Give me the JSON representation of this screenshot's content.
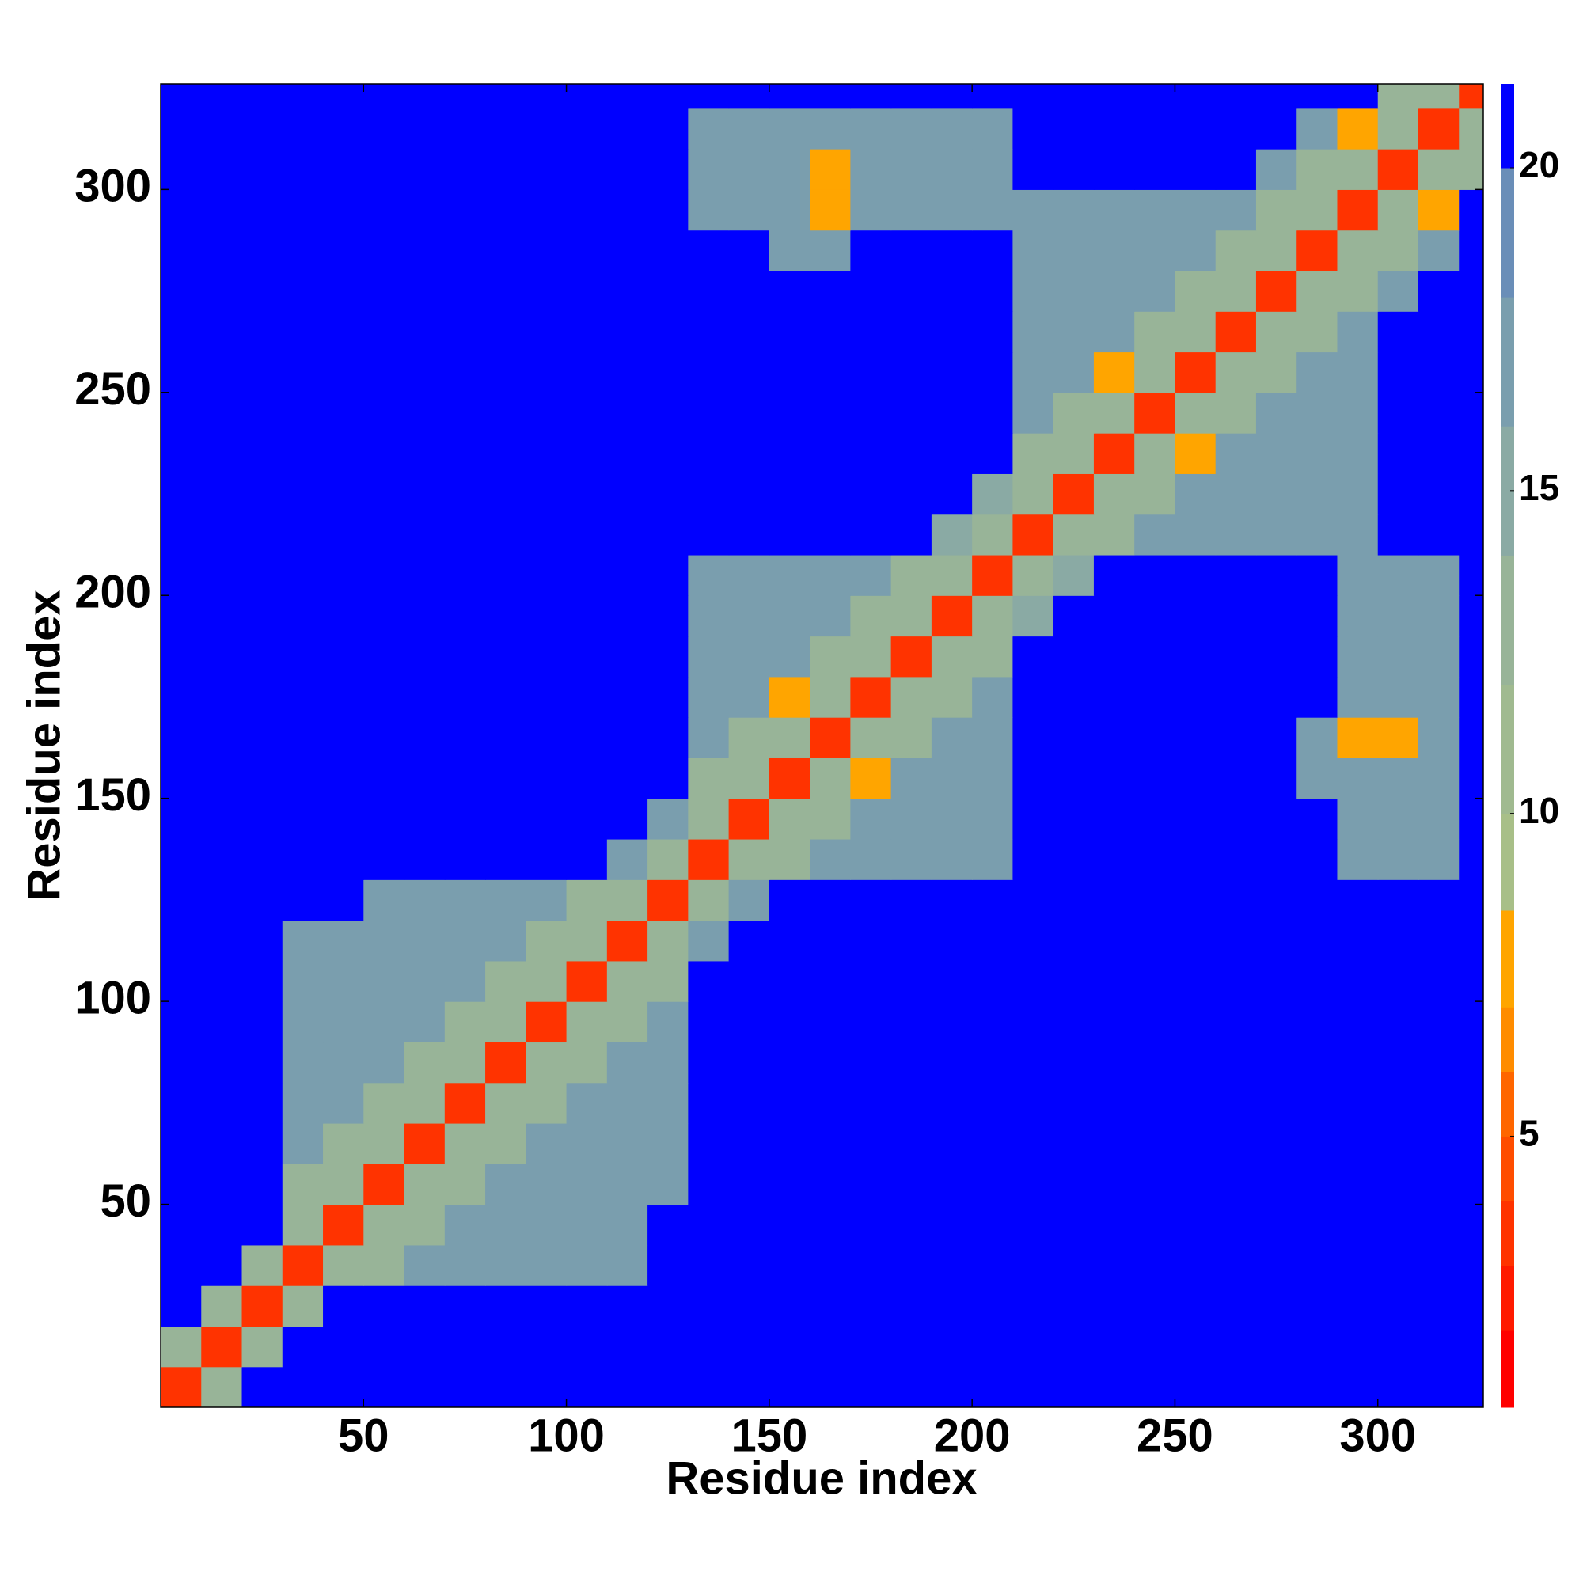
{
  "chart_data": {
    "type": "heatmap",
    "x_label": "Residue index",
    "y_label": "Residue index",
    "xlim": [
      0,
      326
    ],
    "ylim": [
      0,
      326
    ],
    "xticks": [
      50,
      100,
      150,
      200,
      250,
      300
    ],
    "yticks": [
      50,
      100,
      150,
      200,
      250,
      300
    ],
    "bins": [
      0,
      10,
      20,
      30,
      40,
      50,
      60,
      70,
      80,
      90,
      100,
      110,
      120,
      130,
      140,
      150,
      160,
      170,
      180,
      190,
      200,
      210,
      220,
      230,
      240,
      250,
      260,
      270,
      280,
      290,
      300,
      310,
      320,
      326
    ],
    "z": [
      [
        3,
        12,
        25,
        25,
        25,
        25,
        25,
        25,
        25,
        25,
        25,
        25,
        25,
        25,
        25,
        25,
        25,
        25,
        25,
        25,
        25,
        25,
        25,
        25,
        25,
        25,
        25,
        25,
        25,
        25,
        25,
        25,
        25
      ],
      [
        12,
        3,
        12,
        25,
        25,
        25,
        25,
        25,
        25,
        25,
        25,
        25,
        25,
        25,
        25,
        25,
        25,
        25,
        25,
        25,
        25,
        25,
        25,
        25,
        25,
        25,
        25,
        25,
        25,
        25,
        25,
        25,
        25
      ],
      [
        25,
        12,
        3,
        12,
        25,
        25,
        25,
        25,
        25,
        25,
        25,
        25,
        25,
        25,
        25,
        25,
        25,
        25,
        25,
        25,
        25,
        25,
        25,
        25,
        25,
        25,
        25,
        25,
        25,
        25,
        25,
        25,
        25
      ],
      [
        25,
        25,
        12,
        3,
        12,
        13,
        17,
        17,
        17,
        17,
        17,
        17,
        25,
        25,
        25,
        25,
        25,
        25,
        25,
        25,
        25,
        25,
        25,
        25,
        25,
        25,
        25,
        25,
        25,
        25,
        25,
        25,
        25
      ],
      [
        25,
        25,
        25,
        12,
        3,
        12,
        13,
        17,
        17,
        17,
        17,
        17,
        25,
        25,
        25,
        25,
        25,
        25,
        25,
        25,
        25,
        25,
        25,
        25,
        25,
        25,
        25,
        25,
        25,
        25,
        25,
        25,
        25
      ],
      [
        25,
        25,
        25,
        13,
        12,
        3,
        12,
        13,
        17,
        17,
        17,
        17,
        17,
        25,
        25,
        25,
        25,
        25,
        25,
        25,
        25,
        25,
        25,
        25,
        25,
        25,
        25,
        25,
        25,
        25,
        25,
        25,
        25
      ],
      [
        25,
        25,
        25,
        17,
        13,
        12,
        3,
        12,
        13,
        17,
        17,
        17,
        17,
        25,
        25,
        25,
        25,
        25,
        25,
        25,
        25,
        25,
        25,
        25,
        25,
        25,
        25,
        25,
        25,
        25,
        25,
        25,
        25
      ],
      [
        25,
        25,
        25,
        17,
        17,
        13,
        12,
        3,
        12,
        13,
        17,
        17,
        17,
        25,
        25,
        25,
        25,
        25,
        25,
        25,
        25,
        25,
        25,
        25,
        25,
        25,
        25,
        25,
        25,
        25,
        25,
        25,
        25
      ],
      [
        25,
        25,
        25,
        17,
        17,
        17,
        13,
        12,
        3,
        12,
        13,
        17,
        17,
        25,
        25,
        25,
        25,
        25,
        25,
        25,
        25,
        25,
        25,
        25,
        25,
        25,
        25,
        25,
        25,
        25,
        25,
        25,
        25
      ],
      [
        25,
        25,
        25,
        17,
        17,
        17,
        17,
        13,
        12,
        3,
        12,
        13,
        17,
        25,
        25,
        25,
        25,
        25,
        25,
        25,
        25,
        25,
        25,
        25,
        25,
        25,
        25,
        25,
        25,
        25,
        25,
        25,
        25
      ],
      [
        25,
        25,
        25,
        17,
        17,
        17,
        17,
        17,
        13,
        12,
        3,
        12,
        13,
        25,
        25,
        25,
        25,
        25,
        25,
        25,
        25,
        25,
        25,
        25,
        25,
        25,
        25,
        25,
        25,
        25,
        25,
        25,
        25
      ],
      [
        25,
        25,
        25,
        17,
        17,
        17,
        17,
        17,
        17,
        13,
        12,
        3,
        12,
        16,
        25,
        25,
        25,
        25,
        25,
        25,
        25,
        25,
        25,
        25,
        25,
        25,
        25,
        25,
        25,
        25,
        25,
        25,
        25
      ],
      [
        25,
        25,
        25,
        25,
        25,
        17,
        17,
        17,
        17,
        17,
        13,
        12,
        3,
        12,
        16,
        25,
        25,
        25,
        25,
        25,
        25,
        25,
        25,
        25,
        25,
        25,
        25,
        25,
        25,
        25,
        25,
        25,
        25
      ],
      [
        25,
        25,
        25,
        25,
        25,
        25,
        25,
        25,
        25,
        25,
        25,
        16,
        12,
        3,
        12,
        13,
        16,
        16,
        16,
        16,
        16,
        25,
        25,
        25,
        25,
        25,
        25,
        25,
        25,
        17,
        17,
        17,
        25
      ],
      [
        25,
        25,
        25,
        25,
        25,
        25,
        25,
        25,
        25,
        25,
        25,
        25,
        16,
        12,
        3,
        12,
        13,
        16,
        16,
        16,
        16,
        25,
        25,
        25,
        25,
        25,
        25,
        25,
        25,
        17,
        17,
        17,
        25
      ],
      [
        25,
        25,
        25,
        25,
        25,
        25,
        25,
        25,
        25,
        25,
        25,
        25,
        25,
        13,
        12,
        3,
        12,
        8,
        16,
        16,
        16,
        25,
        25,
        25,
        25,
        25,
        25,
        25,
        17,
        17,
        17,
        17,
        25
      ],
      [
        25,
        25,
        25,
        25,
        25,
        25,
        25,
        25,
        25,
        25,
        25,
        25,
        25,
        16,
        13,
        12,
        3,
        12,
        13,
        16,
        16,
        25,
        25,
        25,
        25,
        25,
        25,
        25,
        17,
        8,
        8,
        17,
        25
      ],
      [
        25,
        25,
        25,
        25,
        25,
        25,
        25,
        25,
        25,
        25,
        25,
        25,
        25,
        16,
        16,
        8,
        12,
        3,
        12,
        13,
        16,
        25,
        25,
        25,
        25,
        25,
        25,
        25,
        25,
        17,
        17,
        17,
        25
      ],
      [
        25,
        25,
        25,
        25,
        25,
        25,
        25,
        25,
        25,
        25,
        25,
        25,
        25,
        16,
        16,
        16,
        13,
        12,
        3,
        12,
        13,
        25,
        25,
        25,
        25,
        25,
        25,
        25,
        25,
        17,
        17,
        17,
        25
      ],
      [
        25,
        25,
        25,
        25,
        25,
        25,
        25,
        25,
        25,
        25,
        25,
        25,
        25,
        16,
        16,
        16,
        16,
        13,
        12,
        3,
        12,
        14,
        25,
        25,
        25,
        25,
        25,
        25,
        25,
        17,
        17,
        17,
        25
      ],
      [
        25,
        25,
        25,
        25,
        25,
        25,
        25,
        25,
        25,
        25,
        25,
        25,
        25,
        16,
        16,
        16,
        16,
        16,
        13,
        12,
        3,
        12,
        14,
        25,
        25,
        25,
        25,
        25,
        25,
        17,
        17,
        17,
        25
      ],
      [
        25,
        25,
        25,
        25,
        25,
        25,
        25,
        25,
        25,
        25,
        25,
        25,
        25,
        25,
        25,
        25,
        25,
        25,
        25,
        14,
        12,
        3,
        12,
        13,
        16,
        16,
        16,
        16,
        16,
        16,
        25,
        25,
        25
      ],
      [
        25,
        25,
        25,
        25,
        25,
        25,
        25,
        25,
        25,
        25,
        25,
        25,
        25,
        25,
        25,
        25,
        25,
        25,
        25,
        25,
        14,
        12,
        3,
        12,
        13,
        16,
        16,
        16,
        16,
        16,
        25,
        25,
        25
      ],
      [
        25,
        25,
        25,
        25,
        25,
        25,
        25,
        25,
        25,
        25,
        25,
        25,
        25,
        25,
        25,
        25,
        25,
        25,
        25,
        25,
        25,
        13,
        12,
        3,
        12,
        8,
        16,
        16,
        16,
        16,
        25,
        25,
        25
      ],
      [
        25,
        25,
        25,
        25,
        25,
        25,
        25,
        25,
        25,
        25,
        25,
        25,
        25,
        25,
        25,
        25,
        25,
        25,
        25,
        25,
        25,
        16,
        13,
        12,
        3,
        12,
        13,
        16,
        16,
        16,
        25,
        25,
        25
      ],
      [
        25,
        25,
        25,
        25,
        25,
        25,
        25,
        25,
        25,
        25,
        25,
        25,
        25,
        25,
        25,
        25,
        25,
        25,
        25,
        25,
        25,
        16,
        16,
        8,
        12,
        3,
        12,
        13,
        16,
        16,
        25,
        25,
        25
      ],
      [
        25,
        25,
        25,
        25,
        25,
        25,
        25,
        25,
        25,
        25,
        25,
        25,
        25,
        25,
        25,
        25,
        25,
        25,
        25,
        25,
        25,
        16,
        16,
        16,
        13,
        12,
        3,
        12,
        13,
        16,
        25,
        25,
        25
      ],
      [
        25,
        25,
        25,
        25,
        25,
        25,
        25,
        25,
        25,
        25,
        25,
        25,
        25,
        25,
        25,
        25,
        25,
        25,
        25,
        25,
        25,
        16,
        16,
        16,
        16,
        13,
        12,
        3,
        12,
        13,
        16,
        25,
        25
      ],
      [
        25,
        25,
        25,
        25,
        25,
        25,
        25,
        25,
        25,
        25,
        25,
        25,
        25,
        25,
        25,
        17,
        17,
        25,
        25,
        25,
        25,
        16,
        16,
        16,
        16,
        16,
        13,
        12,
        3,
        12,
        13,
        16,
        25
      ],
      [
        25,
        25,
        25,
        25,
        25,
        25,
        25,
        25,
        25,
        25,
        25,
        25,
        25,
        17,
        17,
        17,
        8,
        17,
        17,
        17,
        17,
        16,
        16,
        16,
        16,
        16,
        16,
        13,
        12,
        3,
        12,
        8,
        25
      ],
      [
        25,
        25,
        25,
        25,
        25,
        25,
        25,
        25,
        25,
        25,
        25,
        25,
        25,
        17,
        17,
        17,
        8,
        17,
        17,
        17,
        17,
        25,
        25,
        25,
        25,
        25,
        25,
        16,
        13,
        12,
        3,
        12,
        13
      ],
      [
        25,
        25,
        25,
        25,
        25,
        25,
        25,
        25,
        25,
        25,
        25,
        25,
        25,
        17,
        17,
        17,
        17,
        17,
        17,
        17,
        17,
        25,
        25,
        25,
        25,
        25,
        25,
        25,
        16,
        8,
        12,
        3,
        12
      ],
      [
        25,
        25,
        25,
        25,
        25,
        25,
        25,
        25,
        25,
        25,
        25,
        25,
        25,
        25,
        25,
        25,
        25,
        25,
        25,
        25,
        25,
        25,
        25,
        25,
        25,
        25,
        25,
        25,
        25,
        25,
        13,
        12,
        3
      ]
    ],
    "levels": [
      2,
      3,
      4,
      5,
      6,
      7,
      8.5,
      10,
      12,
      14,
      16,
      18,
      20
    ],
    "colors": [
      "#ff0000",
      "#ff1a00",
      "#ff3300",
      "#ff4d00",
      "#ff6600",
      "#ff8c00",
      "#ffa500",
      "#a8bf88",
      "#a0ba90",
      "#98b498",
      "#8aaaa4",
      "#7a9eae",
      "#6a8eb8",
      "#0000ff"
    ],
    "clim": [
      0.8,
      21.3
    ],
    "cticks": [
      5,
      10,
      15,
      20
    ]
  }
}
